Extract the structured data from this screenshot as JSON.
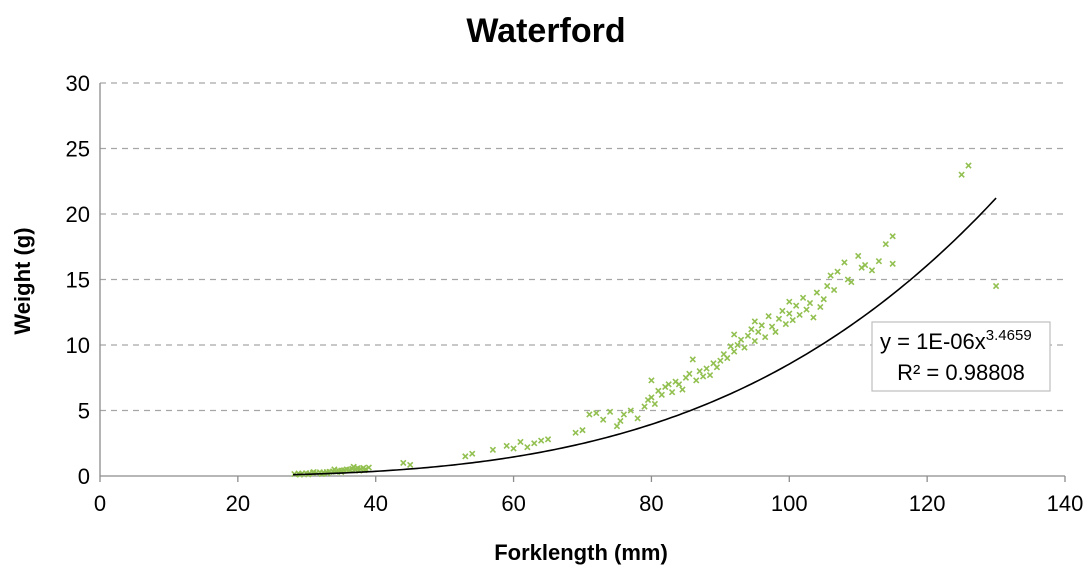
{
  "chart_data": {
    "type": "scatter",
    "title": "Waterford",
    "xlabel": "Forklength (mm)",
    "ylabel": "Weight (g)",
    "xlim": [
      0,
      140
    ],
    "ylim": [
      0,
      30
    ],
    "xticks": [
      "0",
      "20",
      "40",
      "60",
      "80",
      "100",
      "120",
      "140"
    ],
    "yticks": [
      "0",
      "5",
      "10",
      "15",
      "20",
      "25",
      "30"
    ],
    "grid": "horizontal dashed",
    "marker_color": "#92C050",
    "trendline_color": "#000000",
    "trendline": {
      "type": "power",
      "coefficient": 1e-06,
      "exponent": 3.4659,
      "x_range": [
        28,
        130
      ],
      "equation_label": "y = 1E-06x",
      "equation_exponent": "3.4659",
      "r2_label": "R² = 0.98808"
    },
    "series": [
      {
        "points": [
          [
            28.2,
            0.15
          ],
          [
            28.8,
            0.2
          ],
          [
            29.3,
            0.18
          ],
          [
            29.9,
            0.22
          ],
          [
            30.4,
            0.2
          ],
          [
            30.9,
            0.25
          ],
          [
            31.4,
            0.24
          ],
          [
            31.9,
            0.28
          ],
          [
            32.4,
            0.27
          ],
          [
            32.9,
            0.3
          ],
          [
            33.3,
            0.32
          ],
          [
            33.8,
            0.35
          ],
          [
            34.2,
            0.33
          ],
          [
            34.6,
            0.4
          ],
          [
            35.0,
            0.42
          ],
          [
            35.4,
            0.45
          ],
          [
            35.8,
            0.5
          ],
          [
            36.2,
            0.48
          ],
          [
            36.6,
            0.55
          ],
          [
            37.0,
            0.52
          ],
          [
            37.4,
            0.6
          ],
          [
            37.8,
            0.55
          ],
          [
            38.2,
            0.62
          ],
          [
            38.6,
            0.5
          ],
          [
            39.0,
            0.65
          ],
          [
            29.0,
            0.1
          ],
          [
            31.0,
            0.3
          ],
          [
            33.0,
            0.2
          ],
          [
            35.0,
            0.3
          ],
          [
            36.8,
            0.7
          ],
          [
            37.6,
            0.4
          ],
          [
            38.4,
            0.45
          ],
          [
            34.0,
            0.5
          ],
          [
            32.2,
            0.15
          ],
          [
            30.2,
            0.12
          ],
          [
            44,
            1.0
          ],
          [
            45,
            0.85
          ],
          [
            53,
            1.5
          ],
          [
            54,
            1.7
          ],
          [
            57,
            2.0
          ],
          [
            59,
            2.3
          ],
          [
            60,
            2.1
          ],
          [
            61,
            2.6
          ],
          [
            62,
            2.2
          ],
          [
            63,
            2.5
          ],
          [
            64,
            2.7
          ],
          [
            65,
            2.8
          ],
          [
            69,
            3.3
          ],
          [
            70,
            3.5
          ],
          [
            71,
            4.7
          ],
          [
            72,
            4.8
          ],
          [
            73,
            4.3
          ],
          [
            74,
            4.9
          ],
          [
            75,
            3.8
          ],
          [
            75.5,
            4.2
          ],
          [
            76,
            4.7
          ],
          [
            77,
            5.0
          ],
          [
            78,
            4.4
          ],
          [
            79,
            5.3
          ],
          [
            79.5,
            5.8
          ],
          [
            80,
            6.0
          ],
          [
            80,
            7.3
          ],
          [
            80.5,
            5.5
          ],
          [
            81,
            6.5
          ],
          [
            81.5,
            6.2
          ],
          [
            82,
            6.8
          ],
          [
            82.5,
            7.0
          ],
          [
            83,
            6.4
          ],
          [
            83.5,
            7.2
          ],
          [
            84,
            7.0
          ],
          [
            84.5,
            6.6
          ],
          [
            85,
            7.5
          ],
          [
            85.5,
            7.8
          ],
          [
            86,
            8.9
          ],
          [
            86.5,
            7.3
          ],
          [
            87,
            8.0
          ],
          [
            87.5,
            7.6
          ],
          [
            88,
            8.2
          ],
          [
            88.5,
            7.7
          ],
          [
            89,
            8.6
          ],
          [
            89.5,
            8.3
          ],
          [
            90,
            8.8
          ],
          [
            90.5,
            9.3
          ],
          [
            91,
            9.0
          ],
          [
            91.5,
            9.9
          ],
          [
            92,
            9.5
          ],
          [
            92.5,
            10.0
          ],
          [
            92,
            10.8
          ],
          [
            93,
            10.4
          ],
          [
            93.5,
            9.8
          ],
          [
            94,
            10.7
          ],
          [
            94.5,
            11.2
          ],
          [
            95,
            10.3
          ],
          [
            95,
            11.8
          ],
          [
            95.5,
            11.0
          ],
          [
            96,
            11.5
          ],
          [
            96.5,
            10.6
          ],
          [
            97,
            12.2
          ],
          [
            97.5,
            11.4
          ],
          [
            98,
            11.0
          ],
          [
            98.5,
            12.0
          ],
          [
            99,
            12.6
          ],
          [
            99.5,
            11.6
          ],
          [
            100,
            12.4
          ],
          [
            100,
            13.3
          ],
          [
            100.5,
            11.9
          ],
          [
            101,
            13.0
          ],
          [
            101.5,
            12.3
          ],
          [
            102,
            13.6
          ],
          [
            102.5,
            12.7
          ],
          [
            103,
            13.2
          ],
          [
            103.5,
            12.1
          ],
          [
            104,
            14.0
          ],
          [
            104.5,
            12.9
          ],
          [
            105,
            13.5
          ],
          [
            105.5,
            14.5
          ],
          [
            106,
            15.3
          ],
          [
            106.5,
            14.2
          ],
          [
            107,
            15.6
          ],
          [
            108,
            16.3
          ],
          [
            108.5,
            15.0
          ],
          [
            109,
            14.8
          ],
          [
            110,
            16.8
          ],
          [
            110.5,
            15.9
          ],
          [
            111,
            16.1
          ],
          [
            112,
            15.7
          ],
          [
            113,
            16.4
          ],
          [
            114,
            17.7
          ],
          [
            115,
            18.3
          ],
          [
            115,
            16.2
          ],
          [
            125,
            23.0
          ],
          [
            126,
            23.7
          ],
          [
            130,
            14.5
          ]
        ]
      }
    ]
  }
}
